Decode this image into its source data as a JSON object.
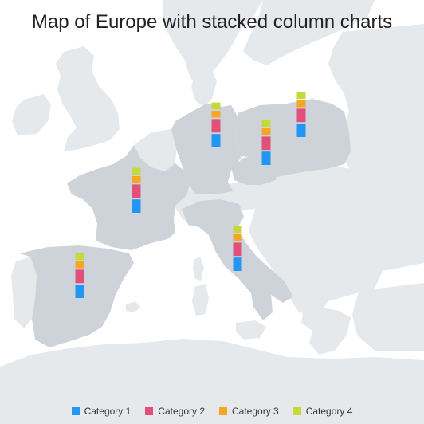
{
  "title": "Map of Europe with stacked column charts",
  "colors": {
    "sea": "#ffffff",
    "land_other": "#e6e9ec",
    "land_highlight": "#cdd3d8",
    "border": "#ffffff"
  },
  "chart_data": {
    "type": "bar",
    "stacked": true,
    "series": [
      {
        "name": "Category 1",
        "color": "#2196f3"
      },
      {
        "name": "Category 2",
        "color": "#e0507a"
      },
      {
        "name": "Category 3",
        "color": "#f5a623"
      },
      {
        "name": "Category 4",
        "color": "#c6d93b"
      }
    ],
    "locations": [
      {
        "name": "Spain",
        "values": [
          4,
          4,
          2,
          2
        ]
      },
      {
        "name": "France",
        "values": [
          4,
          4,
          2,
          2
        ]
      },
      {
        "name": "Germany",
        "values": [
          4,
          4,
          2,
          2
        ]
      },
      {
        "name": "Poland",
        "values": [
          4,
          4,
          2,
          2
        ]
      },
      {
        "name": "Czechia",
        "values": [
          4,
          4,
          2,
          2
        ]
      },
      {
        "name": "Italy",
        "values": [
          4,
          4,
          2,
          2
        ]
      }
    ]
  }
}
